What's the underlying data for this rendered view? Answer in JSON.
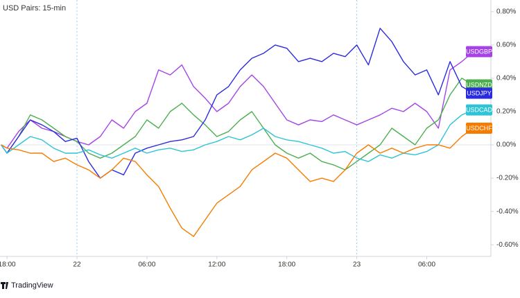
{
  "chart_data": {
    "type": "line",
    "title": "USD Pairs: 15-min",
    "footer": "TradingView",
    "x": [
      -0.5,
      0,
      1,
      2,
      3,
      4,
      5,
      6,
      7,
      8,
      9,
      10,
      11,
      12,
      13,
      14,
      15,
      16,
      17,
      18,
      19,
      20,
      21,
      22,
      23,
      24,
      25,
      26,
      27,
      28,
      29,
      30,
      31,
      32,
      33,
      34,
      35,
      36,
      37,
      38,
      39,
      40
    ],
    "xlim": [
      -0.6,
      41.5
    ],
    "xticks": [
      {
        "value": 0,
        "label": "18:00"
      },
      {
        "value": 6,
        "label": "22"
      },
      {
        "value": 12,
        "label": "06:00"
      },
      {
        "value": 18,
        "label": "12:00"
      },
      {
        "value": 24,
        "label": "18:00"
      },
      {
        "value": 30,
        "label": "23"
      },
      {
        "value": 36,
        "label": "06:00"
      }
    ],
    "session_breaks": [
      6,
      30
    ],
    "ylim": [
      -0.67,
      0.87
    ],
    "yticks": [
      {
        "value": 0.8,
        "label": "0.80%"
      },
      {
        "value": 0.6,
        "label": "0.60%"
      },
      {
        "value": 0.4,
        "label": "0.40%"
      },
      {
        "value": 0.2,
        "label": "0.20%"
      },
      {
        "value": 0,
        "label": "0.00%"
      },
      {
        "value": -0.2,
        "label": "-0.20%"
      },
      {
        "value": -0.4,
        "label": "-0.40%"
      },
      {
        "value": -0.6,
        "label": "-0.60%"
      }
    ],
    "series": [
      {
        "name": "USDGBP",
        "color": "#a443e6",
        "values": [
          0,
          -0.02,
          0.08,
          0.15,
          0.1,
          0.08,
          0.05,
          0.02,
          0.0,
          0.05,
          0.15,
          0.1,
          0.2,
          0.25,
          0.45,
          0.42,
          0.48,
          0.35,
          0.28,
          0.2,
          0.25,
          0.35,
          0.42,
          0.35,
          0.25,
          0.15,
          0.12,
          0.15,
          0.14,
          0.18,
          0.15,
          0.12,
          0.15,
          0.18,
          0.22,
          0.2,
          0.25,
          0.2,
          0.1,
          0.45,
          0.5,
          0.56
        ]
      },
      {
        "name": "USDNZD",
        "color": "#4caf50",
        "values": [
          0,
          -0.05,
          0.05,
          0.18,
          0.15,
          0.1,
          0.05,
          0.02,
          -0.05,
          -0.08,
          -0.05,
          0,
          0.05,
          0.15,
          0.1,
          0.2,
          0.25,
          0.18,
          0.12,
          0.05,
          0.08,
          0.15,
          0.2,
          0.1,
          0,
          -0.05,
          -0.08,
          -0.05,
          -0.1,
          -0.12,
          -0.15,
          -0.1,
          -0.05,
          0,
          0.1,
          0.05,
          0,
          0.1,
          0.15,
          0.3,
          0.4,
          0.36
        ]
      },
      {
        "name": "USDJPY",
        "color": "#2a2ae0",
        "values": [
          0,
          -0.05,
          0.05,
          0.15,
          0.12,
          0.08,
          0.02,
          0.04,
          -0.1,
          -0.2,
          -0.15,
          -0.18,
          -0.05,
          -0.02,
          0,
          0.02,
          0.03,
          0.05,
          0.15,
          0.3,
          0.35,
          0.45,
          0.52,
          0.55,
          0.6,
          0.58,
          0.5,
          0.52,
          0.5,
          0.55,
          0.53,
          0.6,
          0.48,
          0.7,
          0.62,
          0.5,
          0.42,
          0.45,
          0.3,
          0.5,
          0.35,
          0.31
        ]
      },
      {
        "name": "USDCAD",
        "color": "#2ec4d6",
        "values": [
          0,
          -0.05,
          0,
          0.05,
          0.03,
          -0.02,
          -0.05,
          -0.05,
          -0.03,
          -0.06,
          -0.08,
          -0.05,
          -0.02,
          -0.05,
          -0.03,
          -0.02,
          -0.04,
          -0.03,
          0,
          0.02,
          0.05,
          0.03,
          0.06,
          0.1,
          0.05,
          0.03,
          0.02,
          0,
          -0.02,
          -0.05,
          -0.04,
          -0.08,
          -0.1,
          -0.06,
          -0.08,
          -0.05,
          -0.06,
          -0.04,
          0,
          0.12,
          0.18,
          0.21
        ]
      },
      {
        "name": "USDCHF",
        "color": "#f57c00",
        "values": [
          0,
          -0.02,
          -0.03,
          -0.05,
          -0.05,
          -0.1,
          -0.08,
          -0.12,
          -0.15,
          -0.2,
          -0.15,
          -0.08,
          -0.1,
          -0.18,
          -0.25,
          -0.38,
          -0.5,
          -0.55,
          -0.45,
          -0.35,
          -0.3,
          -0.25,
          -0.15,
          -0.1,
          -0.05,
          -0.08,
          -0.15,
          -0.22,
          -0.2,
          -0.22,
          -0.15,
          -0.05,
          0,
          -0.05,
          -0.02,
          -0.05,
          -0.02,
          0,
          0,
          -0.02,
          0.05,
          0.1
        ]
      }
    ]
  }
}
